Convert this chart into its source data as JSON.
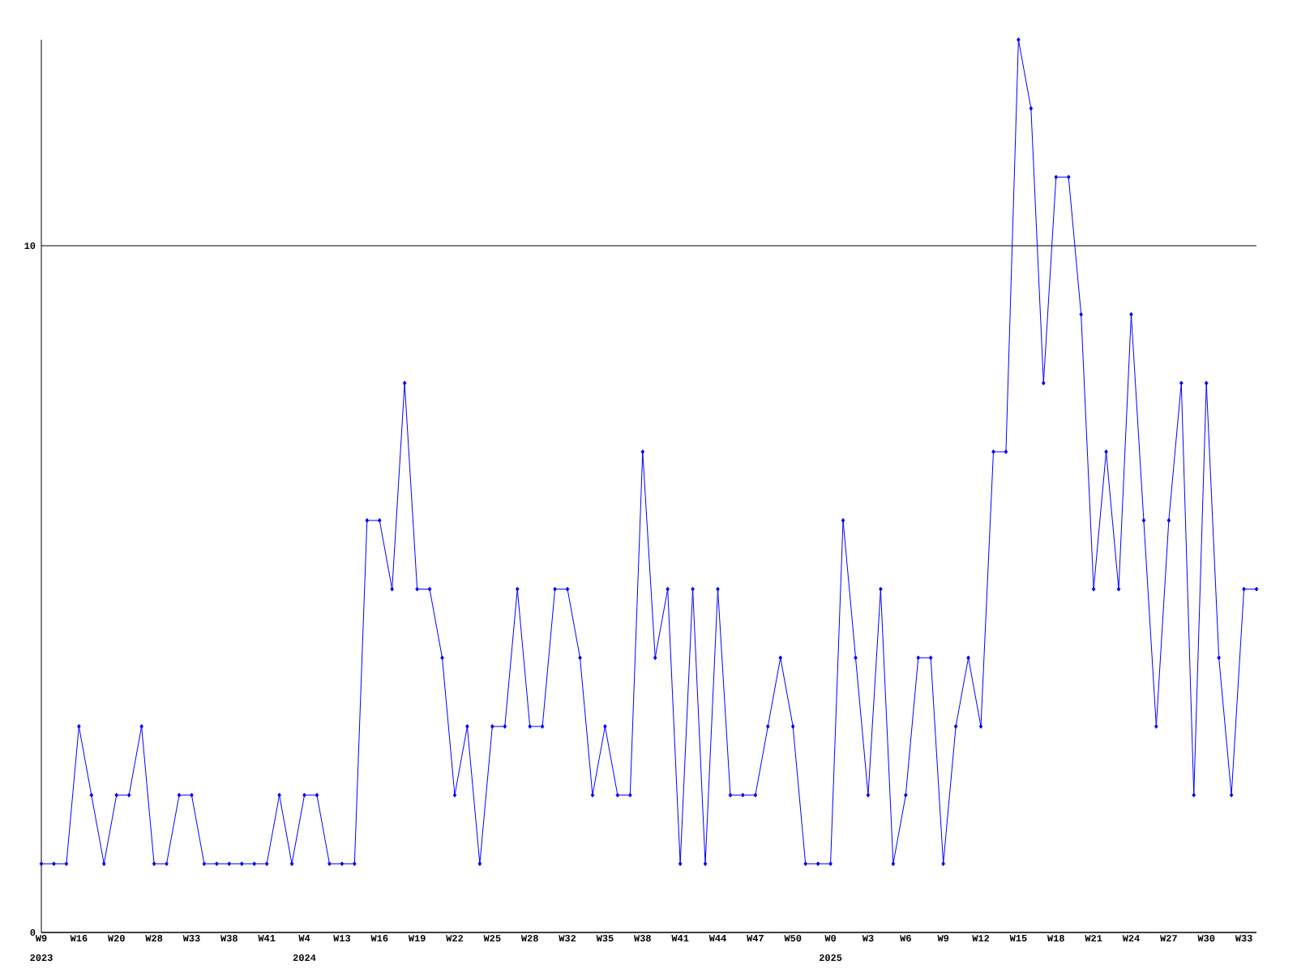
{
  "chart_data": {
    "type": "line",
    "categories": [
      "W9",
      null,
      null,
      "W16",
      null,
      null,
      "W20",
      null,
      null,
      "W28",
      null,
      null,
      "W33",
      null,
      null,
      "W38",
      null,
      null,
      "W41",
      null,
      null,
      "W4",
      null,
      null,
      "W13",
      null,
      null,
      "W16",
      null,
      null,
      "W19",
      null,
      null,
      "W22",
      null,
      null,
      "W25",
      null,
      null,
      "W28",
      null,
      null,
      "W32",
      null,
      null,
      "W35",
      null,
      null,
      "W38",
      null,
      null,
      "W41",
      null,
      null,
      "W44",
      null,
      null,
      "W47",
      null,
      null,
      "W50",
      null,
      null,
      "W0",
      null,
      null,
      "W3",
      null,
      null,
      "W6",
      null,
      null,
      "W9",
      null,
      null,
      "W12",
      null,
      null,
      "W15",
      null,
      null,
      "W18",
      null,
      null,
      "W21",
      null,
      null,
      "W24",
      null,
      null,
      "W27",
      null,
      null,
      "W30",
      null,
      null,
      "W33",
      null
    ],
    "values": [
      1,
      1,
      1,
      3,
      2,
      1,
      2,
      2,
      3,
      1,
      1,
      2,
      2,
      1,
      1,
      1,
      1,
      1,
      1,
      2,
      1,
      2,
      2,
      1,
      1,
      1,
      6,
      6,
      5,
      8,
      5,
      5,
      4,
      2,
      3,
      1,
      3,
      3,
      5,
      3,
      3,
      5,
      5,
      4,
      2,
      3,
      2,
      2,
      7,
      4,
      5,
      1,
      5,
      1,
      5,
      2,
      2,
      2,
      3,
      4,
      3,
      1,
      1,
      1,
      6,
      4,
      2,
      5,
      1,
      2,
      4,
      4,
      1,
      3,
      4,
      3,
      7,
      7,
      13,
      12,
      8,
      11,
      11,
      9,
      5,
      7,
      5,
      9,
      6,
      3,
      6,
      8,
      2,
      8,
      4,
      2,
      5,
      5
    ],
    "color": "#0000ff",
    "marker": "diamond",
    "grid": "y",
    "ylim": [
      0,
      13
    ],
    "yticks": [
      0,
      10
    ],
    "annotations": [
      "2023",
      "2024",
      "2025"
    ]
  }
}
